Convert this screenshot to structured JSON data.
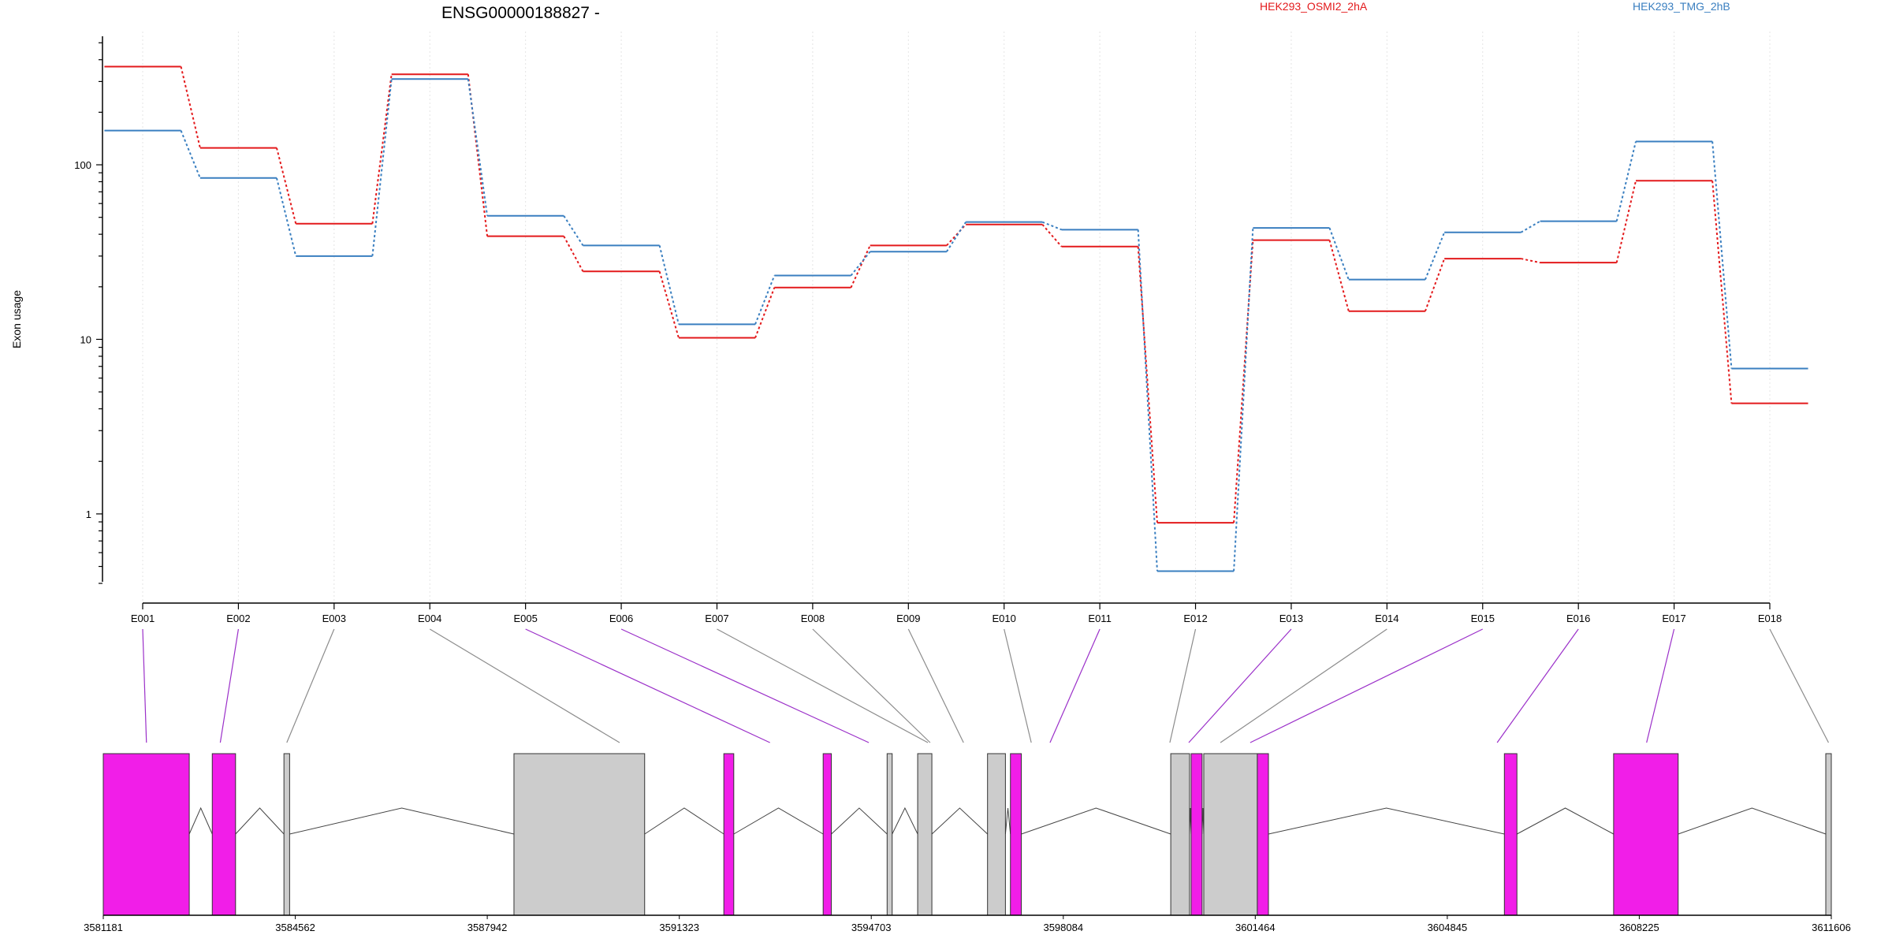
{
  "chart_data": {
    "type": "line",
    "title": "ENSG00000188827 -",
    "ylabel": "Exon usage",
    "xlabel": "",
    "yscale": "log",
    "ylim": [
      0.4,
      580
    ],
    "y_ticks": [
      1,
      10,
      100
    ],
    "y_tick_labels": [
      "1",
      "10",
      "100"
    ],
    "grid": "vertical-dotted",
    "legend_placement": "top",
    "categories": [
      "E001",
      "E002",
      "E003",
      "E004",
      "E005",
      "E006",
      "E007",
      "E008",
      "E009",
      "E010",
      "E011",
      "E012",
      "E013",
      "E014",
      "E015",
      "E016",
      "E017",
      "E018"
    ],
    "series": [
      {
        "name": "HEK293_OSMI2_2hA",
        "color": "#e31a1c",
        "values": [
          365,
          125,
          46,
          330,
          39,
          24.5,
          10.2,
          19.8,
          34.5,
          45.5,
          34,
          0.89,
          37,
          14.5,
          29,
          27.5,
          81,
          4.3
        ]
      },
      {
        "name": "HEK293_TMG_2hB",
        "color": "#3a7fc0",
        "values": [
          157,
          84,
          30,
          310,
          51,
          34.5,
          12.2,
          23.2,
          31.8,
          47,
          42.5,
          0.47,
          43.5,
          22,
          41,
          47.5,
          136,
          6.8
        ]
      }
    ],
    "gene_model": {
      "coord_ticks": [
        "3581181",
        "3584562",
        "3587942",
        "3591323",
        "3594703",
        "3598084",
        "3601464",
        "3604845",
        "3608225",
        "3611606"
      ],
      "coord_min": 3581181,
      "coord_max": 3611606,
      "exons": [
        {
          "start": 3581181,
          "end": 3582695,
          "highlight": true
        },
        {
          "start": 3583100,
          "end": 3583510,
          "highlight": true
        },
        {
          "start": 3584362,
          "end": 3584462,
          "highlight": false
        },
        {
          "start": 3588412,
          "end": 3590713,
          "highlight": false
        },
        {
          "start": 3592107,
          "end": 3592282,
          "highlight": true
        },
        {
          "start": 3593856,
          "end": 3594000,
          "highlight": true
        },
        {
          "start": 3594982,
          "end": 3595071,
          "highlight": false
        },
        {
          "start": 3595520,
          "end": 3595770,
          "highlight": false
        },
        {
          "start": 3596750,
          "end": 3597065,
          "highlight": false
        },
        {
          "start": 3597153,
          "end": 3597345,
          "highlight": true
        },
        {
          "start": 3599976,
          "end": 3600307,
          "highlight": false
        },
        {
          "start": 3600335,
          "end": 3600528,
          "highlight": true
        },
        {
          "start": 3600557,
          "end": 3601500,
          "highlight": false
        },
        {
          "start": 3601500,
          "end": 3601696,
          "highlight": true
        },
        {
          "start": 3605850,
          "end": 3606071,
          "highlight": true
        },
        {
          "start": 3607773,
          "end": 3608910,
          "highlight": true
        },
        {
          "start": 3611509,
          "end": 3611606,
          "highlight": false
        }
      ],
      "exon_bin_links": [
        {
          "bin": "E001",
          "coord": 3581941,
          "highlight": true
        },
        {
          "bin": "E002",
          "coord": 3583241,
          "highlight": true
        },
        {
          "bin": "E003",
          "coord": 3584412,
          "highlight": false
        },
        {
          "bin": "E004",
          "coord": 3590272,
          "highlight": false
        },
        {
          "bin": "E005",
          "coord": 3592919,
          "highlight": true
        },
        {
          "bin": "E006",
          "coord": 3594660,
          "highlight": true
        },
        {
          "bin": "E007",
          "coord": 3595700,
          "highlight": false
        },
        {
          "bin": "E008",
          "coord": 3595740,
          "highlight": false
        },
        {
          "bin": "E009",
          "coord": 3596327,
          "highlight": false
        },
        {
          "bin": "E010",
          "coord": 3597520,
          "highlight": false
        },
        {
          "bin": "E011",
          "coord": 3597850,
          "highlight": true
        },
        {
          "bin": "E012",
          "coord": 3599960,
          "highlight": false
        },
        {
          "bin": "E013",
          "coord": 3600293,
          "highlight": true
        },
        {
          "bin": "E014",
          "coord": 3600850,
          "highlight": false
        },
        {
          "bin": "E015",
          "coord": 3601375,
          "highlight": true
        },
        {
          "bin": "E016",
          "coord": 3605723,
          "highlight": true
        },
        {
          "bin": "E017",
          "coord": 3608354,
          "highlight": true
        },
        {
          "bin": "E018",
          "coord": 3611557,
          "highlight": false
        }
      ]
    }
  },
  "colors": {
    "highlight_exon": "#f11ee8",
    "plain_exon": "#cccccc",
    "highlight_link": "#9b30c9",
    "plain_link": "#8c8c8c",
    "grid": "#e4e4e4",
    "intron": "#444444"
  }
}
